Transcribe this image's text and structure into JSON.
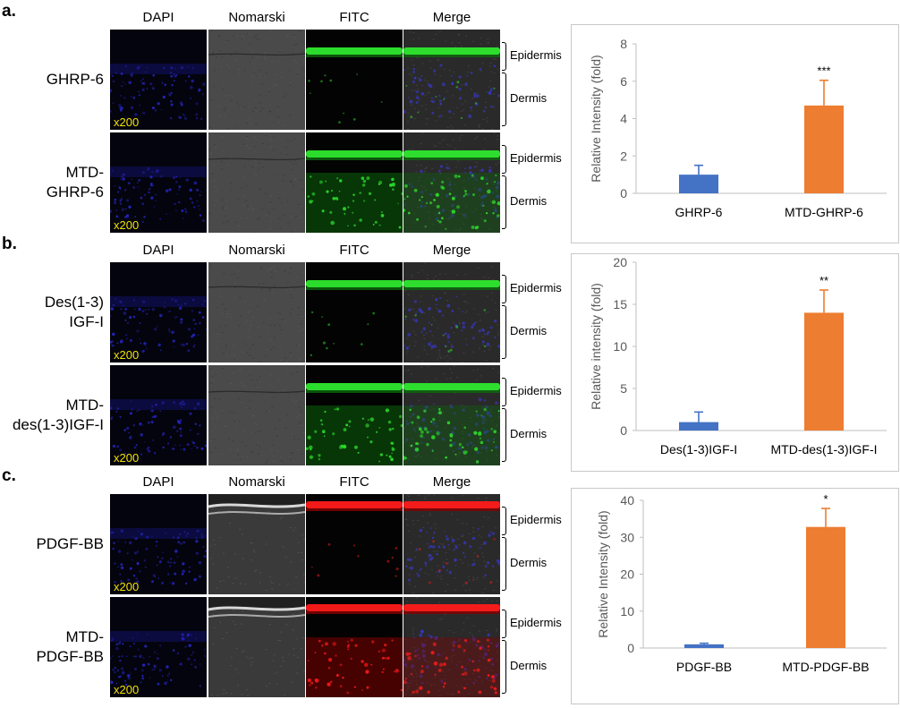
{
  "panels": [
    {
      "letter": "a.",
      "columns": [
        "DAPI",
        "Nomarski",
        "FITC",
        "Merge"
      ],
      "rows": [
        {
          "label_lines": [
            "GHRP-6"
          ],
          "magnification": "x200",
          "layers": [
            "Epidermis",
            "Dermis"
          ]
        },
        {
          "label_lines": [
            "MTD-",
            "GHRP-6"
          ],
          "magnification": "x200",
          "layers": [
            "Epidermis",
            "Dermis"
          ]
        }
      ],
      "stain": "green"
    },
    {
      "letter": "b.",
      "columns": [
        "DAPI",
        "Nomarski",
        "FITC",
        "Merge"
      ],
      "rows": [
        {
          "label_lines": [
            "Des(1-3)",
            "IGF-I"
          ],
          "magnification": "x200",
          "layers": [
            "Epidermis",
            "Dermis"
          ]
        },
        {
          "label_lines": [
            "MTD-",
            "des(1-3)IGF-I"
          ],
          "magnification": "x200",
          "layers": [
            "Epidermis",
            "Dermis"
          ]
        }
      ],
      "stain": "green"
    },
    {
      "letter": "c.",
      "columns": [
        "DAPI",
        "Nomarski",
        "FITC",
        "Merge"
      ],
      "rows": [
        {
          "label_lines": [
            "PDGF-BB"
          ],
          "magnification": "x200",
          "layers": [
            "Epidermis",
            "Dermis"
          ]
        },
        {
          "label_lines": [
            "MTD-",
            "PDGF-BB"
          ],
          "magnification": "x200",
          "layers": [
            "Epidermis",
            "Dermis"
          ]
        }
      ],
      "stain": "red"
    }
  ],
  "chart_data": [
    {
      "type": "bar",
      "categories": [
        "GHRP-6",
        "MTD-GHRP-6"
      ],
      "values": [
        1.0,
        4.7
      ],
      "errors": [
        0.5,
        1.35
      ],
      "significance": [
        "",
        "***"
      ],
      "colors": [
        "#4472c4",
        "#ed7d31"
      ],
      "ylabel": "Relative Intensity (fold)",
      "ylim": [
        0,
        8
      ],
      "yticks": [
        0,
        2,
        4,
        6,
        8
      ]
    },
    {
      "type": "bar",
      "categories": [
        "Des(1-3)IGF-I",
        "MTD-des(1-3)IGF-I"
      ],
      "values": [
        1.0,
        14.0
      ],
      "errors": [
        1.2,
        2.7
      ],
      "significance": [
        "",
        "**"
      ],
      "colors": [
        "#4472c4",
        "#ed7d31"
      ],
      "ylabel": "Relative intensity (fold)",
      "ylim": [
        0,
        20
      ],
      "yticks": [
        0,
        5,
        10,
        15,
        20
      ]
    },
    {
      "type": "bar",
      "categories": [
        "PDGF-BB",
        "MTD-PDGF-BB"
      ],
      "values": [
        1.0,
        32.8
      ],
      "errors": [
        0.3,
        5.0
      ],
      "significance": [
        "",
        "*"
      ],
      "colors": [
        "#4472c4",
        "#ed7d31"
      ],
      "ylabel": "Relative Intensity (fold)",
      "ylim": [
        0,
        40
      ],
      "yticks": [
        0,
        10,
        20,
        30,
        40
      ]
    }
  ]
}
